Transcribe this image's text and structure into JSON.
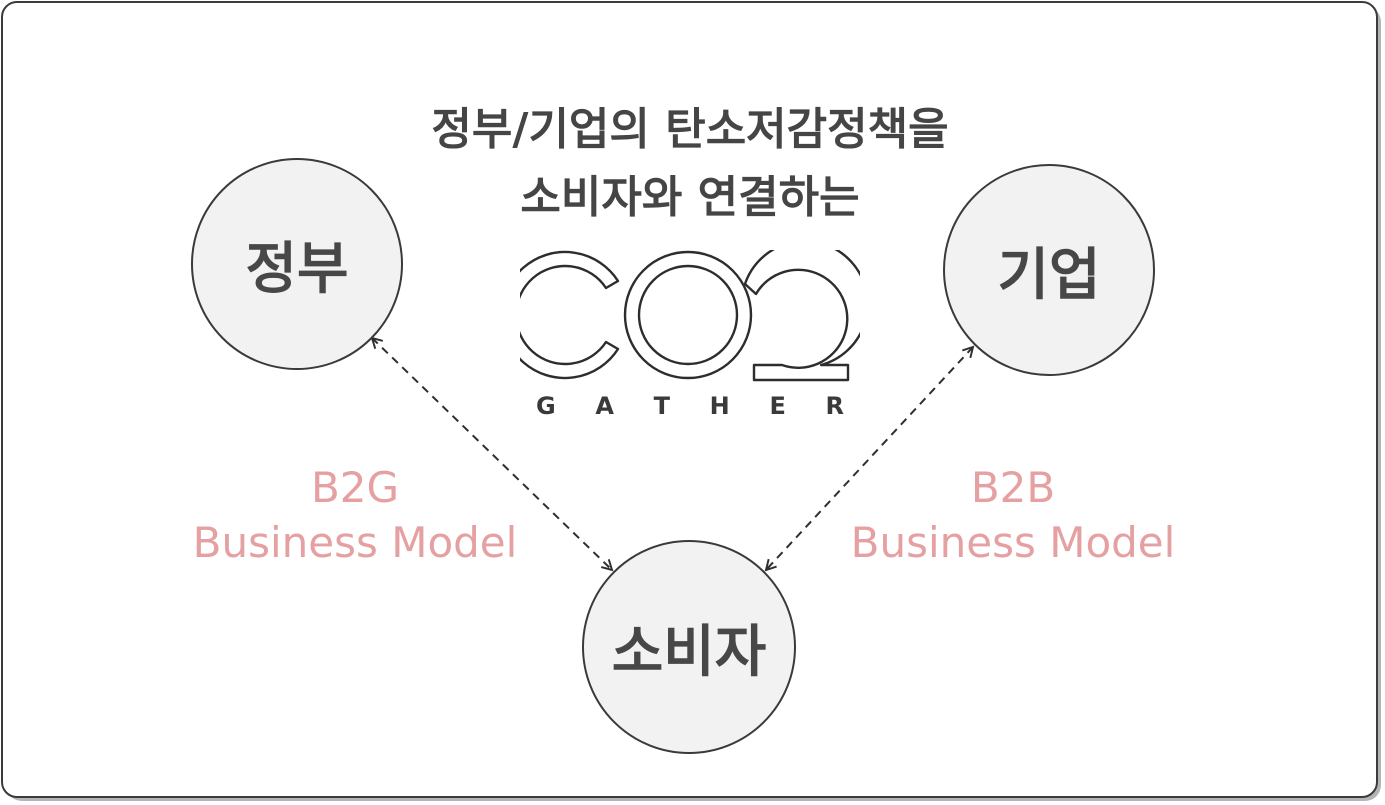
{
  "title": {
    "line1": "정부/기업의 탄소저감정책을",
    "line2": "소비자와 연결하는"
  },
  "nodes": {
    "government": "정부",
    "corporation": "기업",
    "consumer": "소비자"
  },
  "models": {
    "b2g": {
      "code": "B2G",
      "label": "Business Model"
    },
    "b2b": {
      "code": "B2B",
      "label": "Business Model"
    }
  },
  "logo": {
    "mark": "CO2",
    "wordmark": [
      "G",
      "A",
      "T",
      "H",
      "E",
      "R"
    ]
  },
  "colors": {
    "accent": "#e5a1a2",
    "text": "#454545",
    "node_fill": "#f2f2f2",
    "stroke": "#3a3a3a"
  }
}
